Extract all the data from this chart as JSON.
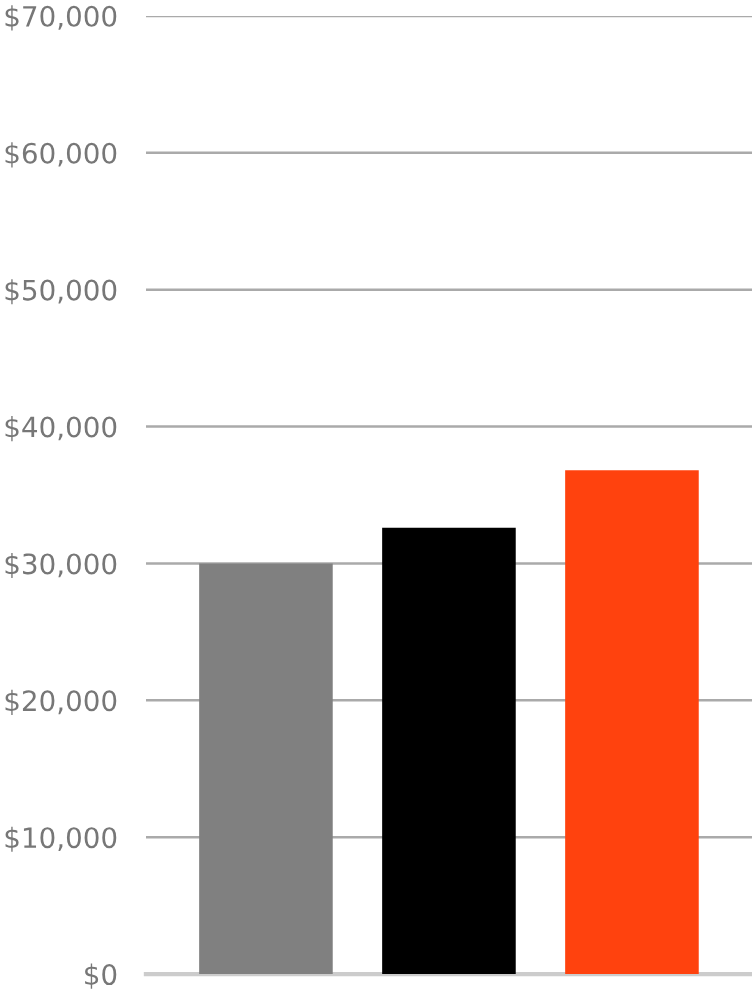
{
  "chart_data": {
    "type": "bar",
    "categories": [
      null,
      null,
      null
    ],
    "values": [
      30000,
      32600,
      36800
    ],
    "colors": [
      "#808080",
      "#000000",
      "#ff420e"
    ],
    "ylim": [
      0,
      70000
    ],
    "yticks": [
      {
        "value": 0,
        "label": "$0"
      },
      {
        "value": 10000,
        "label": "$10,000"
      },
      {
        "value": 20000,
        "label": "$20,000"
      },
      {
        "value": 30000,
        "label": "$30,000"
      },
      {
        "value": 40000,
        "label": "$40,000"
      },
      {
        "value": 50000,
        "label": "$50,000"
      },
      {
        "value": 60000,
        "label": "$60,000"
      },
      {
        "value": 70000,
        "label": "$70,000"
      }
    ],
    "grid": "y"
  }
}
